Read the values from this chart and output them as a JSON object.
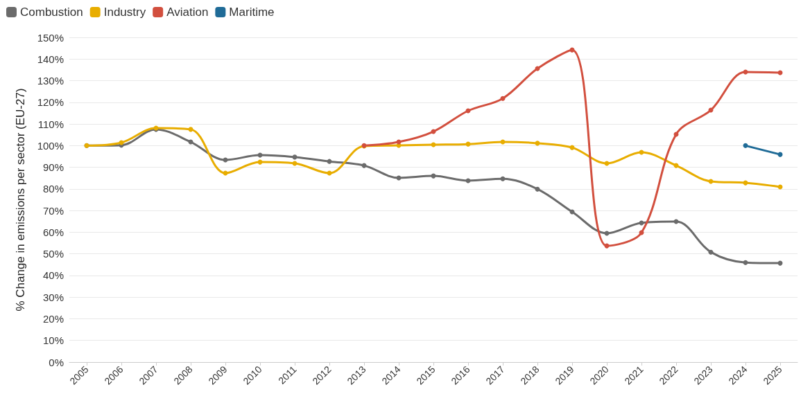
{
  "chart_data": {
    "type": "line",
    "ylabel": "% Change in emissions per sector (EU-27)",
    "categories": [
      "2005",
      "2006",
      "2007",
      "2008",
      "2009",
      "2010",
      "2011",
      "2012",
      "2013",
      "2014",
      "2015",
      "2016",
      "2017",
      "2018",
      "2019",
      "2020",
      "2021",
      "2022",
      "2023",
      "2024",
      "2025"
    ],
    "series": [
      {
        "name": "Combustion",
        "color": "#6b6b6b",
        "values": [
          100,
          100.2,
          107.5,
          101.7,
          93.4,
          95.6,
          94.7,
          92.7,
          90.8,
          85.1,
          86,
          83.8,
          84.7,
          79.9,
          69.4,
          59.5,
          64.3,
          64.9,
          50.8,
          46,
          45.7
        ]
      },
      {
        "name": "Industry",
        "color": "#e8ad00",
        "values": [
          100,
          101.4,
          108.1,
          107.5,
          87.3,
          92.4,
          91.8,
          87.3,
          99.8,
          100.1,
          100.4,
          100.7,
          101.7,
          101.1,
          99.1,
          91.8,
          96.9,
          90.8,
          83.5,
          82.8,
          80.9
        ]
      },
      {
        "name": "Aviation",
        "color": "#d24f3e",
        "values": [
          null,
          null,
          null,
          null,
          null,
          null,
          null,
          null,
          100,
          101.7,
          106.5,
          116.1,
          121.8,
          135.6,
          144.2,
          53.7,
          59.8,
          105.2,
          116.4,
          134,
          133.7
        ]
      },
      {
        "name": "Maritime",
        "color": "#1f6b97",
        "values": [
          null,
          null,
          null,
          null,
          null,
          null,
          null,
          null,
          null,
          null,
          null,
          null,
          null,
          null,
          null,
          null,
          null,
          null,
          null,
          100,
          95.9
        ]
      }
    ],
    "ylim": [
      0,
      150
    ],
    "yticks": [
      {
        "value": 0,
        "label": "0%"
      },
      {
        "value": 10,
        "label": "10%"
      },
      {
        "value": 20,
        "label": "20%"
      },
      {
        "value": 30,
        "label": "30%"
      },
      {
        "value": 40,
        "label": "40%"
      },
      {
        "value": 50,
        "label": "50%"
      },
      {
        "value": 60,
        "label": "60%"
      },
      {
        "value": 70,
        "label": "70%"
      },
      {
        "value": 80,
        "label": "80%"
      },
      {
        "value": 90,
        "label": "90%"
      },
      {
        "value": 100,
        "label": "100%"
      },
      {
        "value": 110,
        "label": "110%"
      },
      {
        "value": 120,
        "label": "120%"
      },
      {
        "value": 130,
        "label": "130%"
      },
      {
        "value": 140,
        "label": "140%"
      },
      {
        "value": 150,
        "label": "150%"
      }
    ],
    "grid": "y",
    "legend": "top left",
    "marker": "circle",
    "line_style": "solid"
  }
}
